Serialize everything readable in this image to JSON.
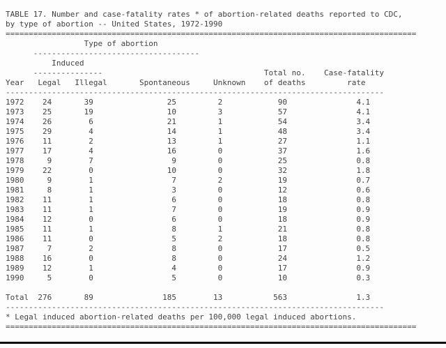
{
  "document": {
    "title_line1": "TABLE 17. Number and case-fatality rates * of abortion-related deaths reported to CDC,",
    "title_line2": "by type of abortion -- United States, 1972-1990",
    "footnote": "* Legal induced abortion-related deaths per 100,000 legal induced abortions."
  },
  "table": {
    "group_header_top": "Type of abortion",
    "group_header_induced": "Induced",
    "headers": {
      "year": "Year",
      "legal": "Legal",
      "illegal": "Illegal",
      "spontaneous": "Spontaneous",
      "unknown": "Unknown",
      "total_line1": "Total no.",
      "total_line2": "of deaths",
      "rate_line1": "Case-fatality",
      "rate_line2": "rate"
    },
    "rows": [
      {
        "year": "1972",
        "legal": "24",
        "illegal": "39",
        "spontaneous": "25",
        "unknown": "2",
        "total": "90",
        "rate": "4.1"
      },
      {
        "year": "1973",
        "legal": "25",
        "illegal": "19",
        "spontaneous": "10",
        "unknown": "3",
        "total": "57",
        "rate": "4.1"
      },
      {
        "year": "1974",
        "legal": "26",
        "illegal": "6",
        "spontaneous": "21",
        "unknown": "1",
        "total": "54",
        "rate": "3.4"
      },
      {
        "year": "1975",
        "legal": "29",
        "illegal": "4",
        "spontaneous": "14",
        "unknown": "1",
        "total": "48",
        "rate": "3.4"
      },
      {
        "year": "1976",
        "legal": "11",
        "illegal": "2",
        "spontaneous": "13",
        "unknown": "1",
        "total": "27",
        "rate": "1.1"
      },
      {
        "year": "1977",
        "legal": "17",
        "illegal": "4",
        "spontaneous": "16",
        "unknown": "0",
        "total": "37",
        "rate": "1.6"
      },
      {
        "year": "1978",
        "legal": "9",
        "illegal": "7",
        "spontaneous": "9",
        "unknown": "0",
        "total": "25",
        "rate": "0.8"
      },
      {
        "year": "1979",
        "legal": "22",
        "illegal": "0",
        "spontaneous": "10",
        "unknown": "0",
        "total": "32",
        "rate": "1.8"
      },
      {
        "year": "1980",
        "legal": "9",
        "illegal": "1",
        "spontaneous": "7",
        "unknown": "2",
        "total": "19",
        "rate": "0.7"
      },
      {
        "year": "1981",
        "legal": "8",
        "illegal": "1",
        "spontaneous": "3",
        "unknown": "0",
        "total": "12",
        "rate": "0.6"
      },
      {
        "year": "1982",
        "legal": "11",
        "illegal": "1",
        "spontaneous": "6",
        "unknown": "0",
        "total": "18",
        "rate": "0.8"
      },
      {
        "year": "1983",
        "legal": "11",
        "illegal": "1",
        "spontaneous": "7",
        "unknown": "0",
        "total": "19",
        "rate": "0.9"
      },
      {
        "year": "1984",
        "legal": "12",
        "illegal": "0",
        "spontaneous": "6",
        "unknown": "0",
        "total": "18",
        "rate": "0.9"
      },
      {
        "year": "1985",
        "legal": "11",
        "illegal": "1",
        "spontaneous": "8",
        "unknown": "1",
        "total": "21",
        "rate": "0.8"
      },
      {
        "year": "1986",
        "legal": "11",
        "illegal": "0",
        "spontaneous": "5",
        "unknown": "2",
        "total": "18",
        "rate": "0.8"
      },
      {
        "year": "1987",
        "legal": "7",
        "illegal": "2",
        "spontaneous": "8",
        "unknown": "0",
        "total": "17",
        "rate": "0.5"
      },
      {
        "year": "1988",
        "legal": "16",
        "illegal": "0",
        "spontaneous": "8",
        "unknown": "0",
        "total": "24",
        "rate": "1.2"
      },
      {
        "year": "1989",
        "legal": "12",
        "illegal": "1",
        "spontaneous": "4",
        "unknown": "0",
        "total": "17",
        "rate": "0.9"
      },
      {
        "year": "1990",
        "legal": "5",
        "illegal": "0",
        "spontaneous": "5",
        "unknown": "0",
        "total": "10",
        "rate": "0.3"
      }
    ],
    "total_row": {
      "year": "Total",
      "legal": "276",
      "illegal": "89",
      "spontaneous": "185",
      "unknown": "13",
      "total": "563",
      "rate": "1.3"
    }
  },
  "colors": {
    "text": "#414141",
    "background": "#fdfdfd",
    "bottom_rule": "#0b0b0b"
  }
}
